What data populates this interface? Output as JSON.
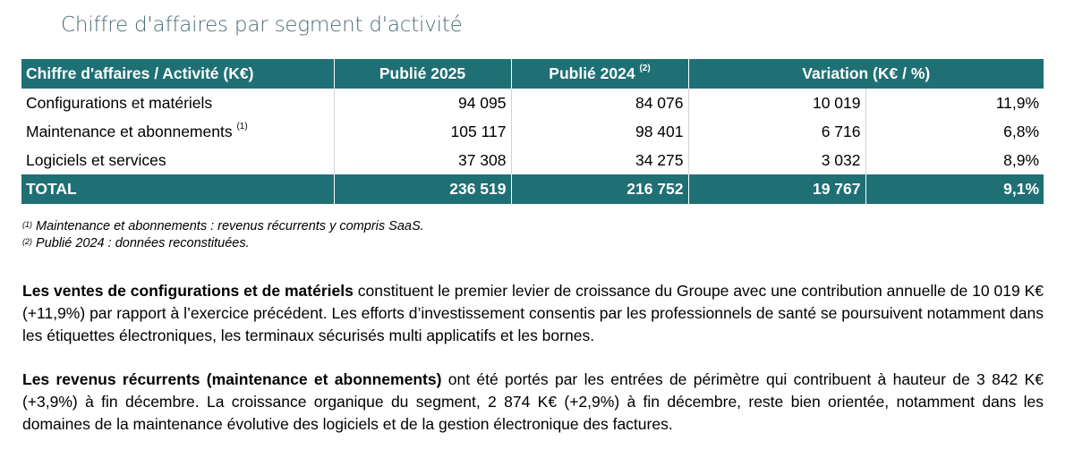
{
  "title": "Chiffre d'affaires par segment d'activité",
  "table": {
    "headers": {
      "activity": "Chiffre d'affaires / Activité (K€)",
      "published_2025": "Publié 2025",
      "published_2024": "Publié 2024",
      "published_2024_note": "(2)",
      "variation": "Variation (K€ / %)"
    },
    "rows": [
      {
        "label": "Configurations et matériels",
        "note": "",
        "v2025": "94 095",
        "v2024": "84 076",
        "var_k": "10 019",
        "var_pct": "11,9%"
      },
      {
        "label": "Maintenance et abonnements",
        "note": "(1)",
        "v2025": "105 117",
        "v2024": "98 401",
        "var_k": "6 716",
        "var_pct": "6,8%"
      },
      {
        "label": "Logiciels et services",
        "note": "",
        "v2025": "37 308",
        "v2024": "34 275",
        "var_k": "3 032",
        "var_pct": "8,9%"
      }
    ],
    "total": {
      "label": "TOTAL",
      "v2025": "236 519",
      "v2024": "216 752",
      "var_k": "19 767",
      "var_pct": "9,1%"
    }
  },
  "footnotes": [
    {
      "mark": "(1)",
      "text": "Maintenance et abonnements : revenus récurrents y compris SaaS."
    },
    {
      "mark": "(2)",
      "text": "Publié 2024 : données reconstituées."
    }
  ],
  "paragraphs": [
    {
      "bold": "Les ventes de configurations et de matériels",
      "text": " constituent le premier levier de croissance du Groupe avec une contribution annuelle de 10 019 K€ (+11,9%) par rapport à l’exercice précédent. Les efforts d’investissement consentis par les professionnels de santé se poursuivent notamment dans les étiquettes électroniques, les terminaux sécurisés multi applicatifs et les bornes."
    },
    {
      "bold": "Les revenus récurrents (maintenance et abonnements)",
      "text": " ont été portés par les entrées de périmètre qui contribuent à hauteur de 3 842 K€ (+3,9%) à fin décembre. La croissance organique du segment, 2 874 K€ (+2,9%) à fin décembre, reste bien orientée, notamment dans les domaines de la maintenance évolutive des logiciels et de la gestion électronique des factures."
    }
  ]
}
